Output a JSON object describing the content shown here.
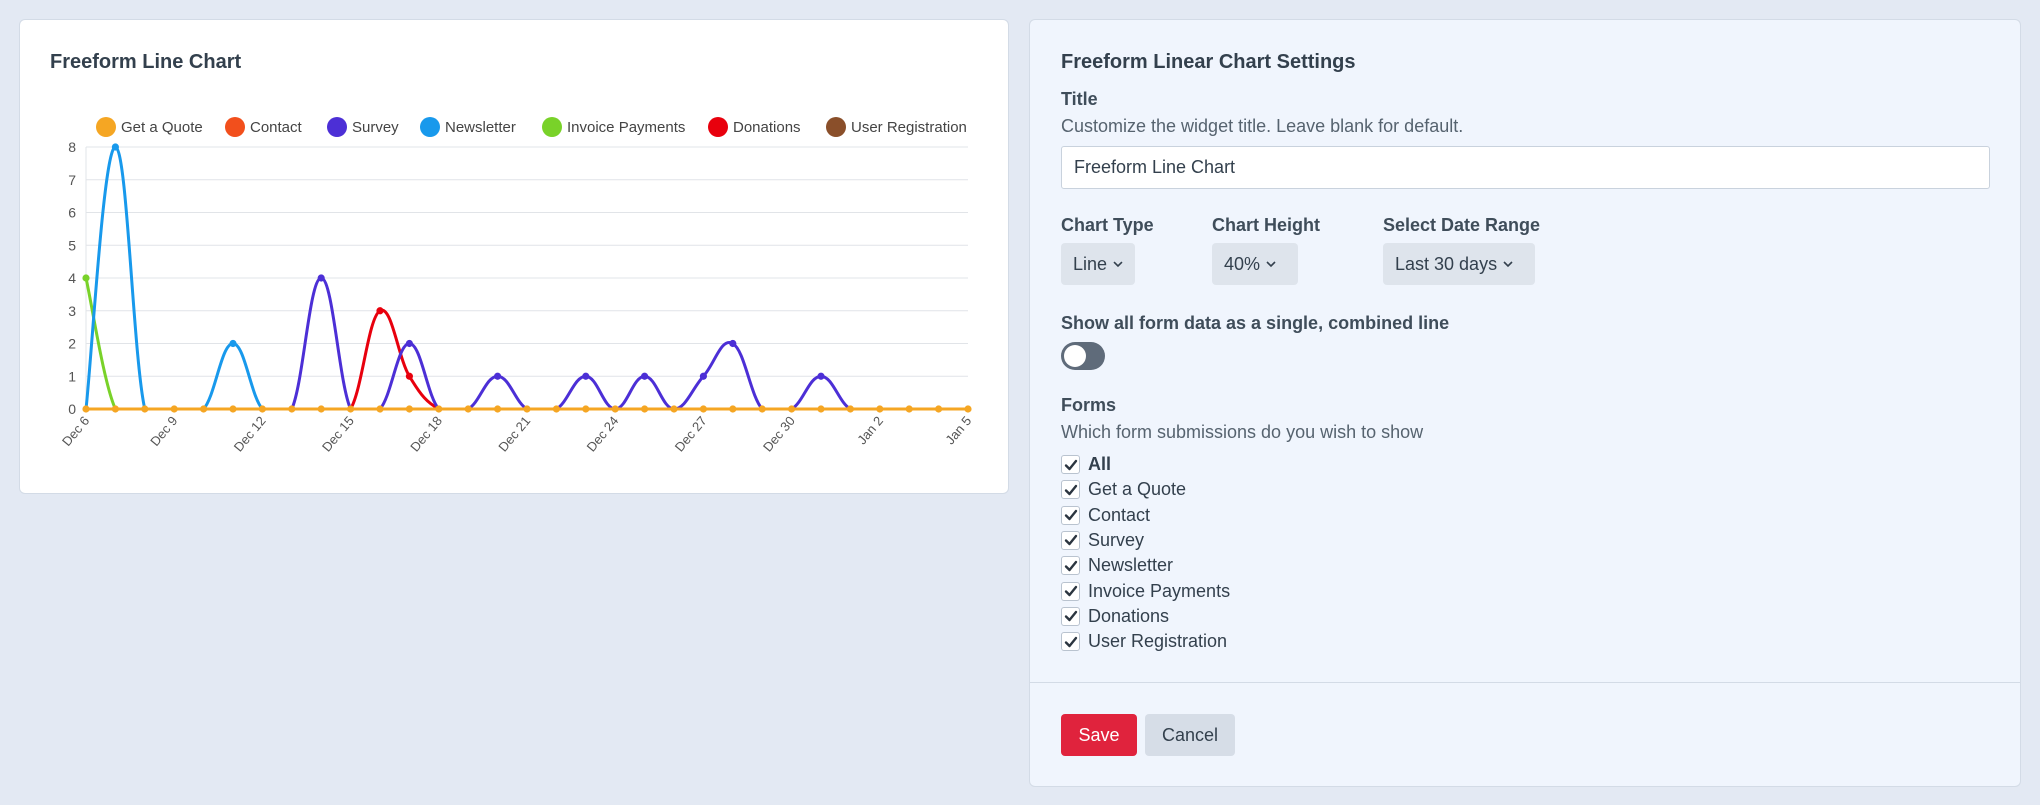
{
  "chart_panel": {
    "title": "Freeform Line Chart"
  },
  "chart_data": {
    "type": "line",
    "title": "Freeform Line Chart",
    "xlabel": "",
    "ylabel": "",
    "ylim": [
      0,
      8
    ],
    "y_ticks": [
      "0",
      "1",
      "2",
      "3",
      "4",
      "5",
      "6",
      "7",
      "8"
    ],
    "x_tick_labels": [
      "Dec 6",
      "Dec 9",
      "Dec 12",
      "Dec 15",
      "Dec 18",
      "Dec 21",
      "Dec 24",
      "Dec 27",
      "Dec 30",
      "Jan 2",
      "Jan 5"
    ],
    "legend_position": "top",
    "series": [
      {
        "name": "Get a Quote",
        "color": "#f5a623",
        "values": [
          0,
          0,
          0,
          0,
          0,
          0,
          0,
          0,
          0,
          0,
          0,
          0,
          0,
          0,
          0,
          0,
          0,
          0,
          0,
          0,
          0,
          0,
          0,
          0,
          0,
          0,
          0,
          0,
          0,
          0,
          0
        ]
      },
      {
        "name": "Contact",
        "color": "#f24f1c",
        "values": [
          0,
          0,
          0,
          0,
          0,
          0,
          0,
          0,
          0,
          0,
          0,
          0,
          0,
          0,
          0,
          0,
          0,
          0,
          0,
          0,
          0,
          0,
          0,
          0,
          0,
          0,
          0,
          0,
          0,
          0,
          0
        ]
      },
      {
        "name": "Survey",
        "color": "#4c2fd6",
        "values": [
          0,
          0,
          0,
          0,
          0,
          0,
          0,
          0,
          4,
          0,
          0,
          2,
          0,
          0,
          1,
          0,
          0,
          1,
          0,
          1,
          0,
          1,
          2,
          0,
          0,
          1,
          0,
          0,
          0,
          0,
          0
        ]
      },
      {
        "name": "Newsletter",
        "color": "#1899ec",
        "values": [
          0,
          8,
          0,
          0,
          0,
          2,
          0,
          0,
          0,
          0,
          0,
          0,
          0,
          0,
          0,
          0,
          0,
          0,
          0,
          0,
          0,
          0,
          0,
          0,
          0,
          0,
          0,
          0,
          0,
          0,
          0
        ]
      },
      {
        "name": "Invoice Payments",
        "color": "#79d229",
        "values": [
          4,
          0,
          0,
          0,
          0,
          0,
          0,
          0,
          0,
          0,
          0,
          0,
          0,
          0,
          0,
          0,
          0,
          0,
          0,
          0,
          0,
          0,
          0,
          0,
          0,
          0,
          0,
          0,
          0,
          0,
          0
        ]
      },
      {
        "name": "Donations",
        "color": "#e8000d",
        "values": [
          0,
          0,
          0,
          0,
          0,
          0,
          0,
          0,
          0,
          0,
          3,
          1,
          0,
          0,
          0,
          0,
          0,
          0,
          0,
          0,
          0,
          0,
          0,
          0,
          0,
          0,
          0,
          0,
          0,
          0,
          0
        ]
      },
      {
        "name": "User Registration",
        "color": "#8a4f2a",
        "values": [
          0,
          0,
          0,
          0,
          0,
          0,
          0,
          0,
          0,
          0,
          0,
          0,
          0,
          0,
          0,
          0,
          0,
          0,
          0,
          0,
          0,
          0,
          0,
          0,
          0,
          0,
          0,
          0,
          0,
          0,
          0
        ]
      }
    ]
  },
  "settings": {
    "title": "Freeform Linear Chart Settings",
    "title_field": {
      "label": "Title",
      "help": "Customize the widget title. Leave blank for default.",
      "value": "Freeform Line Chart"
    },
    "chart_type": {
      "label": "Chart Type",
      "value": "Line"
    },
    "chart_height": {
      "label": "Chart Height",
      "value": "40%"
    },
    "date_range": {
      "label": "Select Date Range",
      "value": "Last 30 days"
    },
    "combined": {
      "label": "Show all form data as a single, combined line"
    },
    "forms": {
      "label": "Forms",
      "help": "Which form submissions do you wish to show",
      "items": [
        "All",
        "Get a Quote",
        "Contact",
        "Survey",
        "Newsletter",
        "Invoice Payments",
        "Donations",
        "User Registration"
      ]
    },
    "save_label": "Save",
    "cancel_label": "Cancel"
  },
  "colors": {
    "accent_save": "#e0233d",
    "page_bg": "#e3e9f3"
  }
}
